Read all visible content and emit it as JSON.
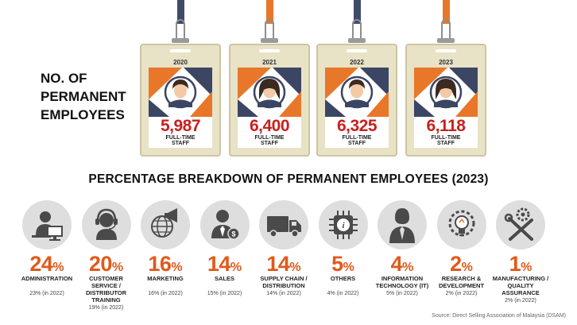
{
  "heading": "NO. OF\nPERMANENT\nEMPLOYEES",
  "badges": [
    {
      "year": "2020",
      "value": "5,987",
      "label": "FULL-TIME\nSTAFF",
      "person": "male"
    },
    {
      "year": "2021",
      "value": "6,400",
      "label": "FULL-TIME\nSTAFF",
      "person": "female"
    },
    {
      "year": "2022",
      "value": "6,325",
      "label": "FULL-TIME\nSTAFF",
      "person": "male"
    },
    {
      "year": "2023",
      "value": "6,118",
      "label": "FULL-TIME\nSTAFF",
      "person": "female"
    }
  ],
  "section_title": "PERCENTAGE BREAKDOWN OF PERMANENT EMPLOYEES (2023)",
  "categories": [
    {
      "pct": "24",
      "name": "ADMINISTRATION",
      "prev": "23% (in 2022)",
      "icon": "administration-icon"
    },
    {
      "pct": "20",
      "name": "CUSTOMER SERVICE /\nDISTRIBUTOR TRAINING",
      "prev": "19% (in 2022)",
      "icon": "headset-icon"
    },
    {
      "pct": "16",
      "name": "MARKETING",
      "prev": "16% (in 2022)",
      "icon": "megaphone-globe-icon"
    },
    {
      "pct": "14",
      "name": "SALES",
      "prev": "15% (in 2022)",
      "icon": "salesperson-icon"
    },
    {
      "pct": "14",
      "name": "SUPPLY CHAIN /\nDISTRIBUTION",
      "prev": "14% (in 2022)",
      "icon": "truck-icon"
    },
    {
      "pct": "5",
      "name": "OTHERS",
      "prev": "4% (in 2022)",
      "icon": "info-chip-icon"
    },
    {
      "pct": "4",
      "name": "INFORMATION\nTECHNOLOGY (IT)",
      "prev": "5% (in 2022)",
      "icon": "it-person-icon"
    },
    {
      "pct": "2",
      "name": "RESEARCH &\nDEVELOPMENT",
      "prev": "2% (in 2022)",
      "icon": "lightbulb-gear-icon"
    },
    {
      "pct": "1",
      "name": "MANUFACTURING /\nQUALITY ASSURANCE",
      "prev": "2% (in 2022)",
      "icon": "tools-gear-icon"
    }
  ],
  "pct_symbol": "%",
  "source": "Source: Direct Selling Association of Malaysia (DSAM)",
  "colors": {
    "lanyard": "#3e4b6a",
    "accent_orange": "#e8772a",
    "navy": "#3b4564",
    "value_red": "#c8201f",
    "pct_orange": "#e05a1c",
    "icon_bg": "#dedede"
  },
  "chart_data": [
    {
      "type": "bar",
      "title": "NO. OF PERMANENT EMPLOYEES",
      "categories": [
        "2020",
        "2021",
        "2022",
        "2023"
      ],
      "values": [
        5987,
        6400,
        6325,
        6118
      ]
    },
    {
      "type": "table",
      "title": "PERCENTAGE BREAKDOWN OF PERMANENT EMPLOYEES (2023)",
      "categories": [
        "ADMINISTRATION",
        "CUSTOMER SERVICE / DISTRIBUTOR TRAINING",
        "MARKETING",
        "SALES",
        "SUPPLY CHAIN / DISTRIBUTION",
        "OTHERS",
        "INFORMATION TECHNOLOGY (IT)",
        "RESEARCH & DEVELOPMENT",
        "MANUFACTURING / QUALITY ASSURANCE"
      ],
      "series": [
        {
          "name": "2023",
          "values": [
            24,
            20,
            16,
            14,
            14,
            5,
            4,
            2,
            1
          ]
        },
        {
          "name": "2022",
          "values": [
            23,
            19,
            16,
            15,
            14,
            4,
            5,
            2,
            2
          ]
        }
      ]
    }
  ]
}
